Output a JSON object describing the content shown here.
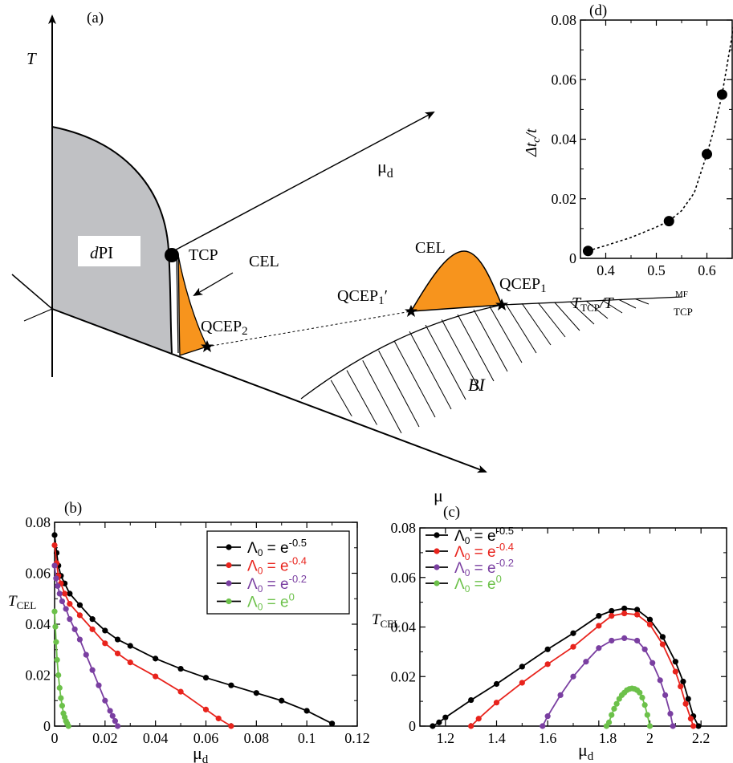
{
  "panel_a": {
    "label": "(a)",
    "axis_T": "T",
    "axis_mu_d": "μ",
    "axis_mu_d_sub": "d",
    "axis_mu": "μ",
    "region_dPI_italic": "d",
    "region_dPI_rest": "PI",
    "region_BI": "BI",
    "tcp": "TCP",
    "cel_left": "CEL",
    "cel_right": "CEL",
    "qcep2": "QCEP",
    "qcep2_sub": "2",
    "qcep1prime": "QCEP",
    "qcep1prime_sub": "1",
    "qcep1prime_prime": "′",
    "qcep1": "QCEP",
    "qcep1_sub": "1"
  },
  "colors": {
    "black": "#000000",
    "red": "#e8231c",
    "purple": "#7a3fa1",
    "green": "#6cc14a",
    "orange": "#f7941d",
    "gray": "#c0c1c4"
  },
  "chart_data": [
    {
      "id": "b",
      "label": "(b)",
      "type": "line",
      "ylabel": "T",
      "ylabel_sub": "CEL",
      "xlabel": "μ",
      "xlabel_sub": "d",
      "xlim": [
        0,
        0.12
      ],
      "ylim": [
        0,
        0.08
      ],
      "xticks": [
        "0",
        "0.02",
        "0.04",
        "0.06",
        "0.08",
        "0.1",
        "0.12"
      ],
      "yticks": [
        "0",
        "0.02",
        "0.04",
        "0.06",
        "0.08"
      ],
      "series": [
        {
          "name": "Λ₀ = e^-0.5",
          "legend_base": "Λ",
          "legend_sub": "0",
          "legend_eq": " = e",
          "legend_exp": "-0.5",
          "color": "#000000",
          "x": [
            0,
            0.0008,
            0.0015,
            0.0025,
            0.004,
            0.006,
            0.01,
            0.015,
            0.02,
            0.025,
            0.03,
            0.04,
            0.05,
            0.06,
            0.07,
            0.08,
            0.09,
            0.1,
            0.11
          ],
          "y": [
            0.075,
            0.068,
            0.063,
            0.059,
            0.056,
            0.052,
            0.0475,
            0.042,
            0.0375,
            0.034,
            0.0315,
            0.0265,
            0.0225,
            0.019,
            0.016,
            0.013,
            0.01,
            0.006,
            0.001
          ]
        },
        {
          "name": "Λ₀ = e^-0.4",
          "legend_base": "Λ",
          "legend_sub": "0",
          "legend_eq": " = e",
          "legend_exp": "-0.4",
          "color": "#e8231c",
          "x": [
            0,
            0.0008,
            0.0015,
            0.0025,
            0.004,
            0.006,
            0.01,
            0.015,
            0.02,
            0.025,
            0.03,
            0.04,
            0.05,
            0.06,
            0.065,
            0.07
          ],
          "y": [
            0.071,
            0.064,
            0.059,
            0.056,
            0.052,
            0.048,
            0.0435,
            0.038,
            0.0325,
            0.0285,
            0.025,
            0.0195,
            0.0135,
            0.0065,
            0.003,
            0
          ]
        },
        {
          "name": "Λ₀ = e^-0.2",
          "legend_base": "Λ",
          "legend_sub": "0",
          "legend_eq": " = e",
          "legend_exp": "-0.2",
          "color": "#7a3fa1",
          "x": [
            0,
            0.0006,
            0.0012,
            0.002,
            0.003,
            0.0045,
            0.006,
            0.008,
            0.01,
            0.0125,
            0.015,
            0.0175,
            0.02,
            0.022,
            0.023,
            0.024,
            0.025
          ],
          "y": [
            0.063,
            0.058,
            0.055,
            0.052,
            0.049,
            0.046,
            0.042,
            0.038,
            0.034,
            0.028,
            0.022,
            0.016,
            0.01,
            0.006,
            0.004,
            0.002,
            0
          ]
        },
        {
          "name": "Λ₀ = e^0",
          "legend_base": "Λ",
          "legend_sub": "0",
          "legend_eq": " = e",
          "legend_exp": "0",
          "color": "#6cc14a",
          "x": [
            0,
            0.0003,
            0.0006,
            0.001,
            0.0015,
            0.002,
            0.0025,
            0.003,
            0.0035,
            0.004,
            0.0045,
            0.005,
            0.0055
          ],
          "y": [
            0.045,
            0.039,
            0.033,
            0.026,
            0.02,
            0.015,
            0.011,
            0.008,
            0.005,
            0.0035,
            0.002,
            0.001,
            0
          ]
        }
      ]
    },
    {
      "id": "c",
      "label": "(c)",
      "type": "line",
      "ylabel": "T",
      "ylabel_sub": "CEL",
      "xlabel": "μ",
      "xlabel_sub": "d",
      "xlim": [
        1.1,
        2.3
      ],
      "ylim": [
        0,
        0.08
      ],
      "xticks": [
        "1.2",
        "1.4",
        "1.6",
        "1.8",
        "2",
        "2.2"
      ],
      "yticks": [
        "0",
        "0.02",
        "0.04",
        "0.06",
        "0.08"
      ],
      "series": [
        {
          "name": "Λ₀ = e^-0.5",
          "legend_base": "Λ",
          "legend_sub": "0",
          "legend_eq": " = e",
          "legend_exp": "-0.5",
          "color": "#000000",
          "x": [
            1.15,
            1.175,
            1.2,
            1.3,
            1.4,
            1.5,
            1.6,
            1.7,
            1.8,
            1.85,
            1.9,
            1.95,
            2.0,
            2.05,
            2.1,
            2.13,
            2.15,
            2.17,
            2.19
          ],
          "y": [
            0,
            0.0015,
            0.0035,
            0.0105,
            0.017,
            0.024,
            0.031,
            0.0375,
            0.0445,
            0.0465,
            0.0475,
            0.047,
            0.043,
            0.036,
            0.026,
            0.018,
            0.011,
            0.004,
            0
          ]
        },
        {
          "name": "Λ₀ = e^-0.4",
          "legend_base": "Λ",
          "legend_sub": "0",
          "legend_eq": " = e",
          "legend_exp": "-0.4",
          "color": "#e8231c",
          "x": [
            1.3,
            1.33,
            1.4,
            1.5,
            1.6,
            1.7,
            1.8,
            1.85,
            1.9,
            1.95,
            2.0,
            2.05,
            2.1,
            2.12,
            2.14,
            2.16,
            2.17
          ],
          "y": [
            0,
            0.003,
            0.0095,
            0.0175,
            0.025,
            0.032,
            0.0405,
            0.0445,
            0.0455,
            0.045,
            0.041,
            0.033,
            0.022,
            0.016,
            0.009,
            0.003,
            0
          ]
        },
        {
          "name": "Λ₀ = e^-0.2",
          "legend_base": "Λ",
          "legend_sub": "0",
          "legend_eq": " = e",
          "legend_exp": "-0.2",
          "color": "#7a3fa1",
          "x": [
            1.58,
            1.6,
            1.65,
            1.7,
            1.75,
            1.8,
            1.85,
            1.9,
            1.95,
            1.98,
            2.01,
            2.04,
            2.06,
            2.08,
            2.09
          ],
          "y": [
            0,
            0.004,
            0.0125,
            0.02,
            0.026,
            0.0315,
            0.0345,
            0.0355,
            0.0345,
            0.031,
            0.0255,
            0.0185,
            0.0125,
            0.005,
            0
          ]
        },
        {
          "name": "Λ₀ = e^0",
          "legend_base": "Λ",
          "legend_sub": "0",
          "legend_eq": " = e",
          "legend_exp": "0",
          "color": "#6cc14a",
          "x": [
            1.83,
            1.84,
            1.85,
            1.86,
            1.87,
            1.88,
            1.89,
            1.9,
            1.91,
            1.92,
            1.93,
            1.94,
            1.95,
            1.96,
            1.97,
            1.98,
            1.99,
            2.0
          ],
          "y": [
            0,
            0.0015,
            0.0045,
            0.007,
            0.009,
            0.011,
            0.0125,
            0.0135,
            0.0145,
            0.015,
            0.0152,
            0.015,
            0.0145,
            0.0135,
            0.0115,
            0.0085,
            0.0045,
            0
          ]
        }
      ]
    },
    {
      "id": "d",
      "label": "(d)",
      "type": "scatter",
      "ylabel": "Δt",
      "ylabel_sub": "c",
      "ylabel_tail": "/t",
      "xlabel": "T",
      "xlabel_sub": "TCP",
      "xlabel_slash": "/T",
      "xlabel_sup": "MF",
      "xlabel_sub2": "TCP",
      "xlim": [
        0.35,
        0.65
      ],
      "ylim": [
        0,
        0.08
      ],
      "xticks": [
        "0.4",
        "0.5",
        "0.6"
      ],
      "yticks": [
        "0",
        "0.02",
        "0.04",
        "0.06",
        "0.08"
      ],
      "points": {
        "x": [
          0.365,
          0.525,
          0.6,
          0.63
        ],
        "y": [
          0.0025,
          0.0125,
          0.035,
          0.055
        ]
      },
      "fit": {
        "x": [
          0.365,
          0.4,
          0.45,
          0.5,
          0.525,
          0.55,
          0.575,
          0.6,
          0.615,
          0.63,
          0.645,
          0.655
        ],
        "y": [
          0.0025,
          0.0043,
          0.007,
          0.0105,
          0.0125,
          0.016,
          0.022,
          0.035,
          0.044,
          0.055,
          0.07,
          0.08
        ]
      }
    }
  ]
}
